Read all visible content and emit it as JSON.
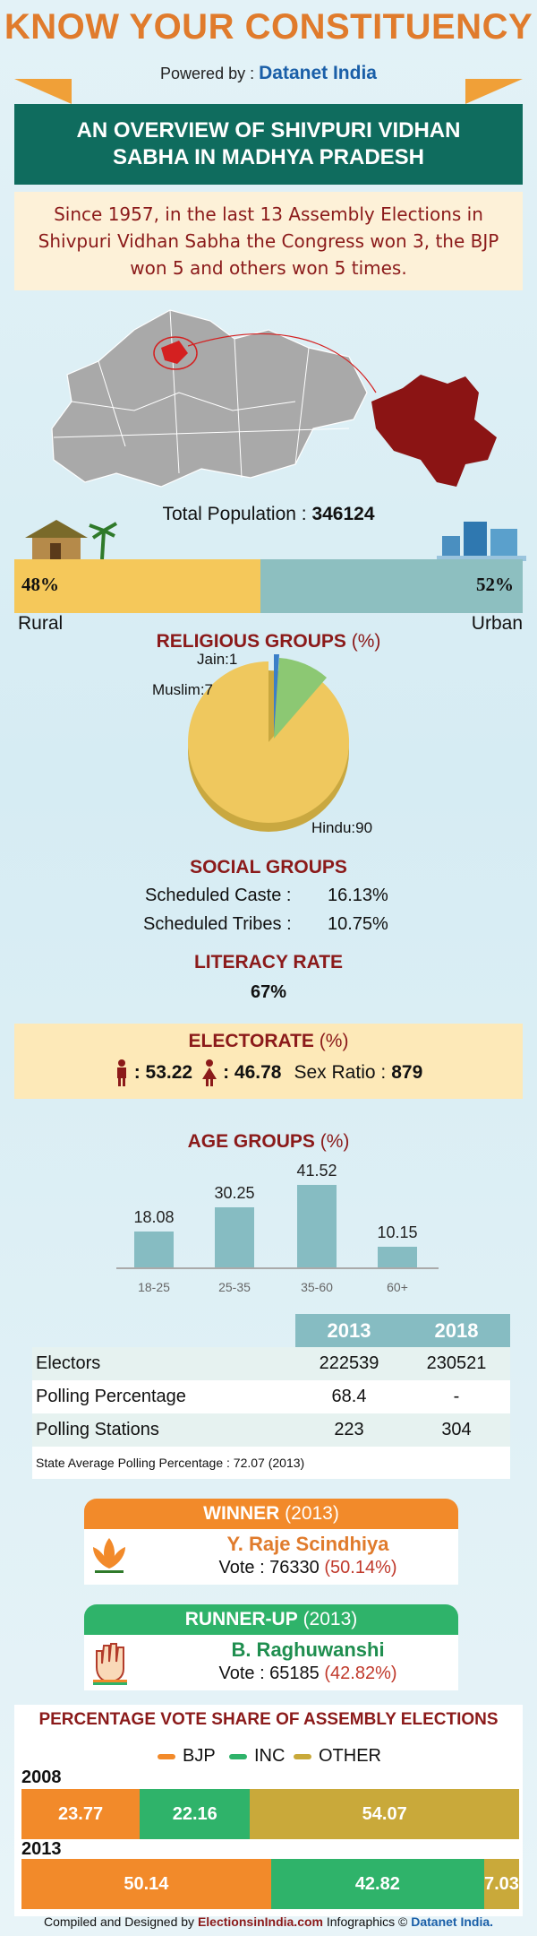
{
  "header": {
    "title": "KNOW YOUR CONSTITUENCY",
    "powered_prefix": "Powered by :",
    "powered_brand": "Datanet India"
  },
  "overview_title": "AN OVERVIEW OF SHIVPURI VIDHAN SABHA IN MADHYA PRADESH",
  "summary": "Since 1957, in the last 13 Assembly Elections in Shivpuri Vidhan Sabha the Congress won 3, the BJP won 5 and others won 5 times.",
  "population": {
    "label": "Total Population :",
    "value": "346124"
  },
  "area": {
    "rural_pct": "48%",
    "urban_pct": "52%",
    "rural_share": 48,
    "urban_share": 52,
    "rural_label": "Rural",
    "urban_label": "Urban"
  },
  "religious": {
    "title": "RELIGIOUS GROUPS",
    "unit": "(%)",
    "labels": [
      "Jain:1",
      "Muslim:7",
      "Hindu:90"
    ]
  },
  "social": {
    "title": "SOCIAL GROUPS",
    "sc_label": "Scheduled Caste :",
    "sc_value": "16.13%",
    "st_label": "Scheduled Tribes :",
    "st_value": "10.75%"
  },
  "literacy": {
    "title": "LITERACY RATE",
    "value": "67%"
  },
  "electorate": {
    "title": "ELECTORATE",
    "unit": "(%)",
    "male": ": 53.22",
    "female": ": 46.78",
    "sex_ratio_label": "Sex Ratio :",
    "sex_ratio_value": "879"
  },
  "age_groups": {
    "title": "AGE GROUPS",
    "unit": "(%)"
  },
  "chart_data": {
    "type": "bar",
    "categories": [
      "18-25",
      "25-35",
      "35-60",
      "60+"
    ],
    "values": [
      18.08,
      30.25,
      41.52,
      10.15
    ],
    "value_labels": [
      "18.08",
      "30.25",
      "41.52",
      "10.15"
    ],
    "title": "AGE GROUPS (%)",
    "ylim": [
      0,
      45
    ],
    "grid": false
  },
  "stats": {
    "years": [
      "2013",
      "2018"
    ],
    "rows": [
      {
        "label": "Electors",
        "v2013": "222539",
        "v2018": "230521"
      },
      {
        "label": "Polling Percentage",
        "v2013": "68.4",
        "v2018": "-"
      },
      {
        "label": "Polling Stations",
        "v2013": "223",
        "v2018": "304"
      }
    ],
    "state_avg": "State Average Polling Percentage : 72.07 (2013)"
  },
  "winner": {
    "title": "WINNER",
    "year": "(2013)",
    "name": "Y. Raje Scindhiya",
    "vote_label": "Vote : 76330",
    "vote_pct": "(50.14%)"
  },
  "runner_up": {
    "title": "RUNNER-UP",
    "year": "(2013)",
    "name": "B. Raghuwanshi",
    "vote_label": "Vote : 65185",
    "vote_pct": "(42.82%)"
  },
  "vote_share": {
    "title": "PERCENTAGE VOTE SHARE OF ASSEMBLY ELECTIONS",
    "legend": [
      "BJP",
      "INC",
      "OTHER"
    ],
    "colors": {
      "BJP": "#f28a2a",
      "INC": "#2fb36a",
      "OTHER": "#c9a93a"
    },
    "years": [
      {
        "year": "2008",
        "bjp": 23.77,
        "inc": 22.16,
        "other": 54.07,
        "labels": [
          "23.77",
          "22.16",
          "54.07"
        ]
      },
      {
        "year": "2013",
        "bjp": 50.14,
        "inc": 42.82,
        "other": 7.03,
        "labels": [
          "50.14",
          "42.82",
          "7.03"
        ]
      }
    ]
  },
  "footer": {
    "prefix": "Compiled and Designed by",
    "site": "ElectionsinIndia.com",
    "middle": "Infographics ©",
    "brand": "Datanet India."
  }
}
